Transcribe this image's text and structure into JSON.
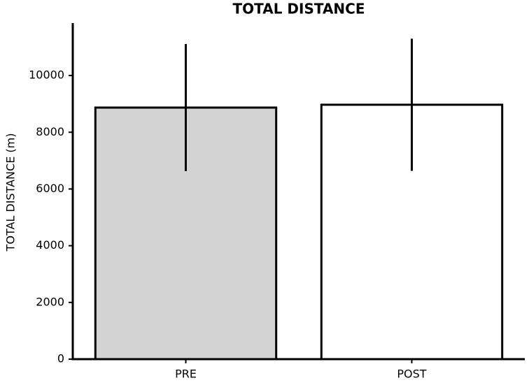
{
  "chart_data": {
    "type": "bar",
    "title": "TOTAL DISTANCE",
    "y_label": "TOTAL DISTANCE (m)",
    "categories": [
      "PRE",
      "POST"
    ],
    "values": [
      8870,
      8970
    ],
    "errors": [
      2240,
      2330
    ],
    "colors": [
      "#d3d3d3",
      "#ffffff"
    ],
    "edge_color": "#000000",
    "ylim": [
      0,
      11850
    ],
    "yticks": [
      0,
      2000,
      4000,
      6000,
      8000,
      10000
    ],
    "grid": false
  }
}
